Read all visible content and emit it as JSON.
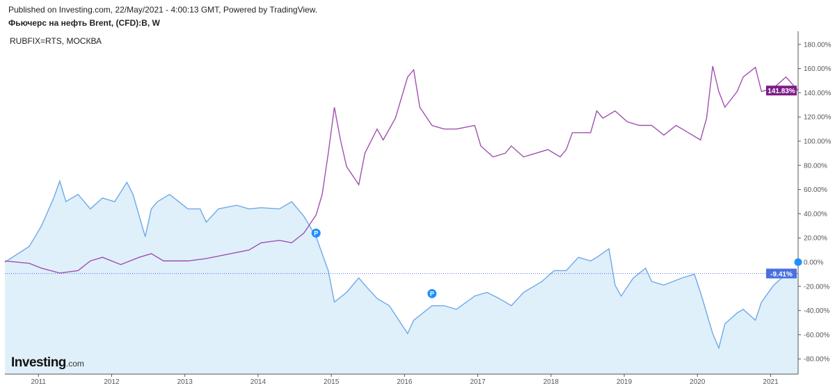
{
  "header": {
    "published": "Published on Investing.com, 22/May/2021 - 4:00:13 GMT, Powered by TradingView.",
    "main_title": "Фьючерс на нефть Brent, (CFD):B, W",
    "compare_title": "RUBFIX=RTS, МОСКВА"
  },
  "logo": {
    "brand": "Investing",
    "suffix": ".com"
  },
  "chart_data": {
    "type": "line",
    "title": "Фьючерс на нефть Brent, (CFD):B, W",
    "xlabel": "",
    "ylabel": "",
    "x_range": [
      "2010-07",
      "2021-05"
    ],
    "ylim": [
      -92,
      191
    ],
    "y_unit": "%",
    "grid": false,
    "x_ticks": [
      "2011",
      "2012",
      "2013",
      "2014",
      "2015",
      "2016",
      "2017",
      "2018",
      "2019",
      "2020",
      "2021"
    ],
    "y_ticks": [
      "180.00%",
      "160.00%",
      "140.00%",
      "120.00%",
      "100.00%",
      "80.00%",
      "60.00%",
      "40.00%",
      "20.00%",
      "0.00%",
      "-20.00%",
      "-40.00%",
      "-60.00%",
      "-80.00%"
    ],
    "y_tick_values": [
      180,
      160,
      140,
      120,
      100,
      80,
      60,
      40,
      20,
      0,
      -20,
      -40,
      -60,
      -80
    ],
    "series": [
      {
        "name": "Фьючерс на нефть Brent, (CFD):B, W",
        "color": "#6fa8e8",
        "fill": "#dff0fa",
        "last_label": "-9.41%",
        "label_color": "#4a6fe0",
        "points": [
          [
            "2010-07",
            0
          ],
          [
            "2010-11",
            13
          ],
          [
            "2011-01",
            30
          ],
          [
            "2011-03",
            53
          ],
          [
            "2011-04",
            67
          ],
          [
            "2011-05",
            50
          ],
          [
            "2011-07",
            56
          ],
          [
            "2011-09",
            44
          ],
          [
            "2011-11",
            53
          ],
          [
            "2012-01",
            50
          ],
          [
            "2012-03",
            66
          ],
          [
            "2012-04",
            56
          ],
          [
            "2012-06",
            21
          ],
          [
            "2012-07",
            44
          ],
          [
            "2012-08",
            50
          ],
          [
            "2012-10",
            56
          ],
          [
            "2013-01",
            44
          ],
          [
            "2013-03",
            44
          ],
          [
            "2013-04",
            33
          ],
          [
            "2013-06",
            44
          ],
          [
            "2013-09",
            47
          ],
          [
            "2013-11",
            44
          ],
          [
            "2014-01",
            45
          ],
          [
            "2014-04",
            44
          ],
          [
            "2014-06",
            50
          ],
          [
            "2014-08",
            38
          ],
          [
            "2014-10",
            21
          ],
          [
            "2014-12",
            -7
          ],
          [
            "2015-01",
            -33
          ],
          [
            "2015-03",
            -25
          ],
          [
            "2015-05",
            -13
          ],
          [
            "2015-06",
            -19
          ],
          [
            "2015-08",
            -30
          ],
          [
            "2015-10",
            -36
          ],
          [
            "2016-01",
            -59
          ],
          [
            "2016-02",
            -48
          ],
          [
            "2016-05",
            -36
          ],
          [
            "2016-07",
            -36
          ],
          [
            "2016-09",
            -39
          ],
          [
            "2016-12",
            -28
          ],
          [
            "2017-02",
            -25
          ],
          [
            "2017-04",
            -30
          ],
          [
            "2017-06",
            -36
          ],
          [
            "2017-08",
            -25
          ],
          [
            "2017-11",
            -16
          ],
          [
            "2018-01",
            -7
          ],
          [
            "2018-03",
            -7
          ],
          [
            "2018-05",
            4
          ],
          [
            "2018-07",
            1
          ],
          [
            "2018-08",
            4
          ],
          [
            "2018-10",
            11
          ],
          [
            "2018-11",
            -19
          ],
          [
            "2018-12",
            -28
          ],
          [
            "2019-02",
            -13
          ],
          [
            "2019-04",
            -5
          ],
          [
            "2019-05",
            -16
          ],
          [
            "2019-07",
            -19
          ],
          [
            "2019-10",
            -13
          ],
          [
            "2019-12",
            -10
          ],
          [
            "2020-01",
            -25
          ],
          [
            "2020-03",
            -59
          ],
          [
            "2020-04",
            -71
          ],
          [
            "2020-05",
            -51
          ],
          [
            "2020-07",
            -42
          ],
          [
            "2020-08",
            -39
          ],
          [
            "2020-10",
            -48
          ],
          [
            "2020-11",
            -33
          ],
          [
            "2021-01",
            -19
          ],
          [
            "2021-03",
            -10
          ],
          [
            "2021-05",
            -9.41
          ]
        ]
      },
      {
        "name": "RUBFIX=RTS, МОСКВА",
        "color": "#a050b0",
        "last_label": "141.83%",
        "label_color": "#7d1d85",
        "points": [
          [
            "2010-07",
            1
          ],
          [
            "2010-11",
            -1
          ],
          [
            "2011-01",
            -5
          ],
          [
            "2011-04",
            -9
          ],
          [
            "2011-07",
            -7
          ],
          [
            "2011-09",
            1
          ],
          [
            "2011-11",
            4
          ],
          [
            "2012-02",
            -2
          ],
          [
            "2012-05",
            4
          ],
          [
            "2012-07",
            7
          ],
          [
            "2012-09",
            1
          ],
          [
            "2013-01",
            1
          ],
          [
            "2013-04",
            3
          ],
          [
            "2013-07",
            6
          ],
          [
            "2013-11",
            10
          ],
          [
            "2014-01",
            16
          ],
          [
            "2014-04",
            18
          ],
          [
            "2014-06",
            16
          ],
          [
            "2014-08",
            24
          ],
          [
            "2014-10",
            39
          ],
          [
            "2014-11",
            56
          ],
          [
            "2014-12",
            90
          ],
          [
            "2015-01",
            128
          ],
          [
            "2015-02",
            101
          ],
          [
            "2015-03",
            79
          ],
          [
            "2015-05",
            64
          ],
          [
            "2015-06",
            90
          ],
          [
            "2015-08",
            110
          ],
          [
            "2015-09",
            101
          ],
          [
            "2015-11",
            119
          ],
          [
            "2016-01",
            153
          ],
          [
            "2016-02",
            159
          ],
          [
            "2016-03",
            128
          ],
          [
            "2016-05",
            113
          ],
          [
            "2016-07",
            110
          ],
          [
            "2016-09",
            110
          ],
          [
            "2016-12",
            113
          ],
          [
            "2017-01",
            96
          ],
          [
            "2017-03",
            87
          ],
          [
            "2017-05",
            90
          ],
          [
            "2017-06",
            96
          ],
          [
            "2017-08",
            87
          ],
          [
            "2017-12",
            93
          ],
          [
            "2018-02",
            87
          ],
          [
            "2018-03",
            93
          ],
          [
            "2018-04",
            107
          ],
          [
            "2018-07",
            107
          ],
          [
            "2018-08",
            125
          ],
          [
            "2018-09",
            119
          ],
          [
            "2018-11",
            125
          ],
          [
            "2019-01",
            116
          ],
          [
            "2019-03",
            113
          ],
          [
            "2019-05",
            113
          ],
          [
            "2019-07",
            105
          ],
          [
            "2019-09",
            113
          ],
          [
            "2019-11",
            107
          ],
          [
            "2020-01",
            101
          ],
          [
            "2020-02",
            119
          ],
          [
            "2020-03",
            162
          ],
          [
            "2020-04",
            141
          ],
          [
            "2020-05",
            128
          ],
          [
            "2020-07",
            141
          ],
          [
            "2020-08",
            153
          ],
          [
            "2020-10",
            161
          ],
          [
            "2020-11",
            141
          ],
          [
            "2021-01",
            144
          ],
          [
            "2021-03",
            153
          ],
          [
            "2021-05",
            141.83
          ]
        ]
      }
    ],
    "markers": [
      {
        "label": "P",
        "date": "2014-10",
        "value": 24,
        "color": "#1e90ff"
      },
      {
        "label": "P",
        "date": "2016-05",
        "value": -26,
        "color": "#1e90ff"
      }
    ]
  }
}
